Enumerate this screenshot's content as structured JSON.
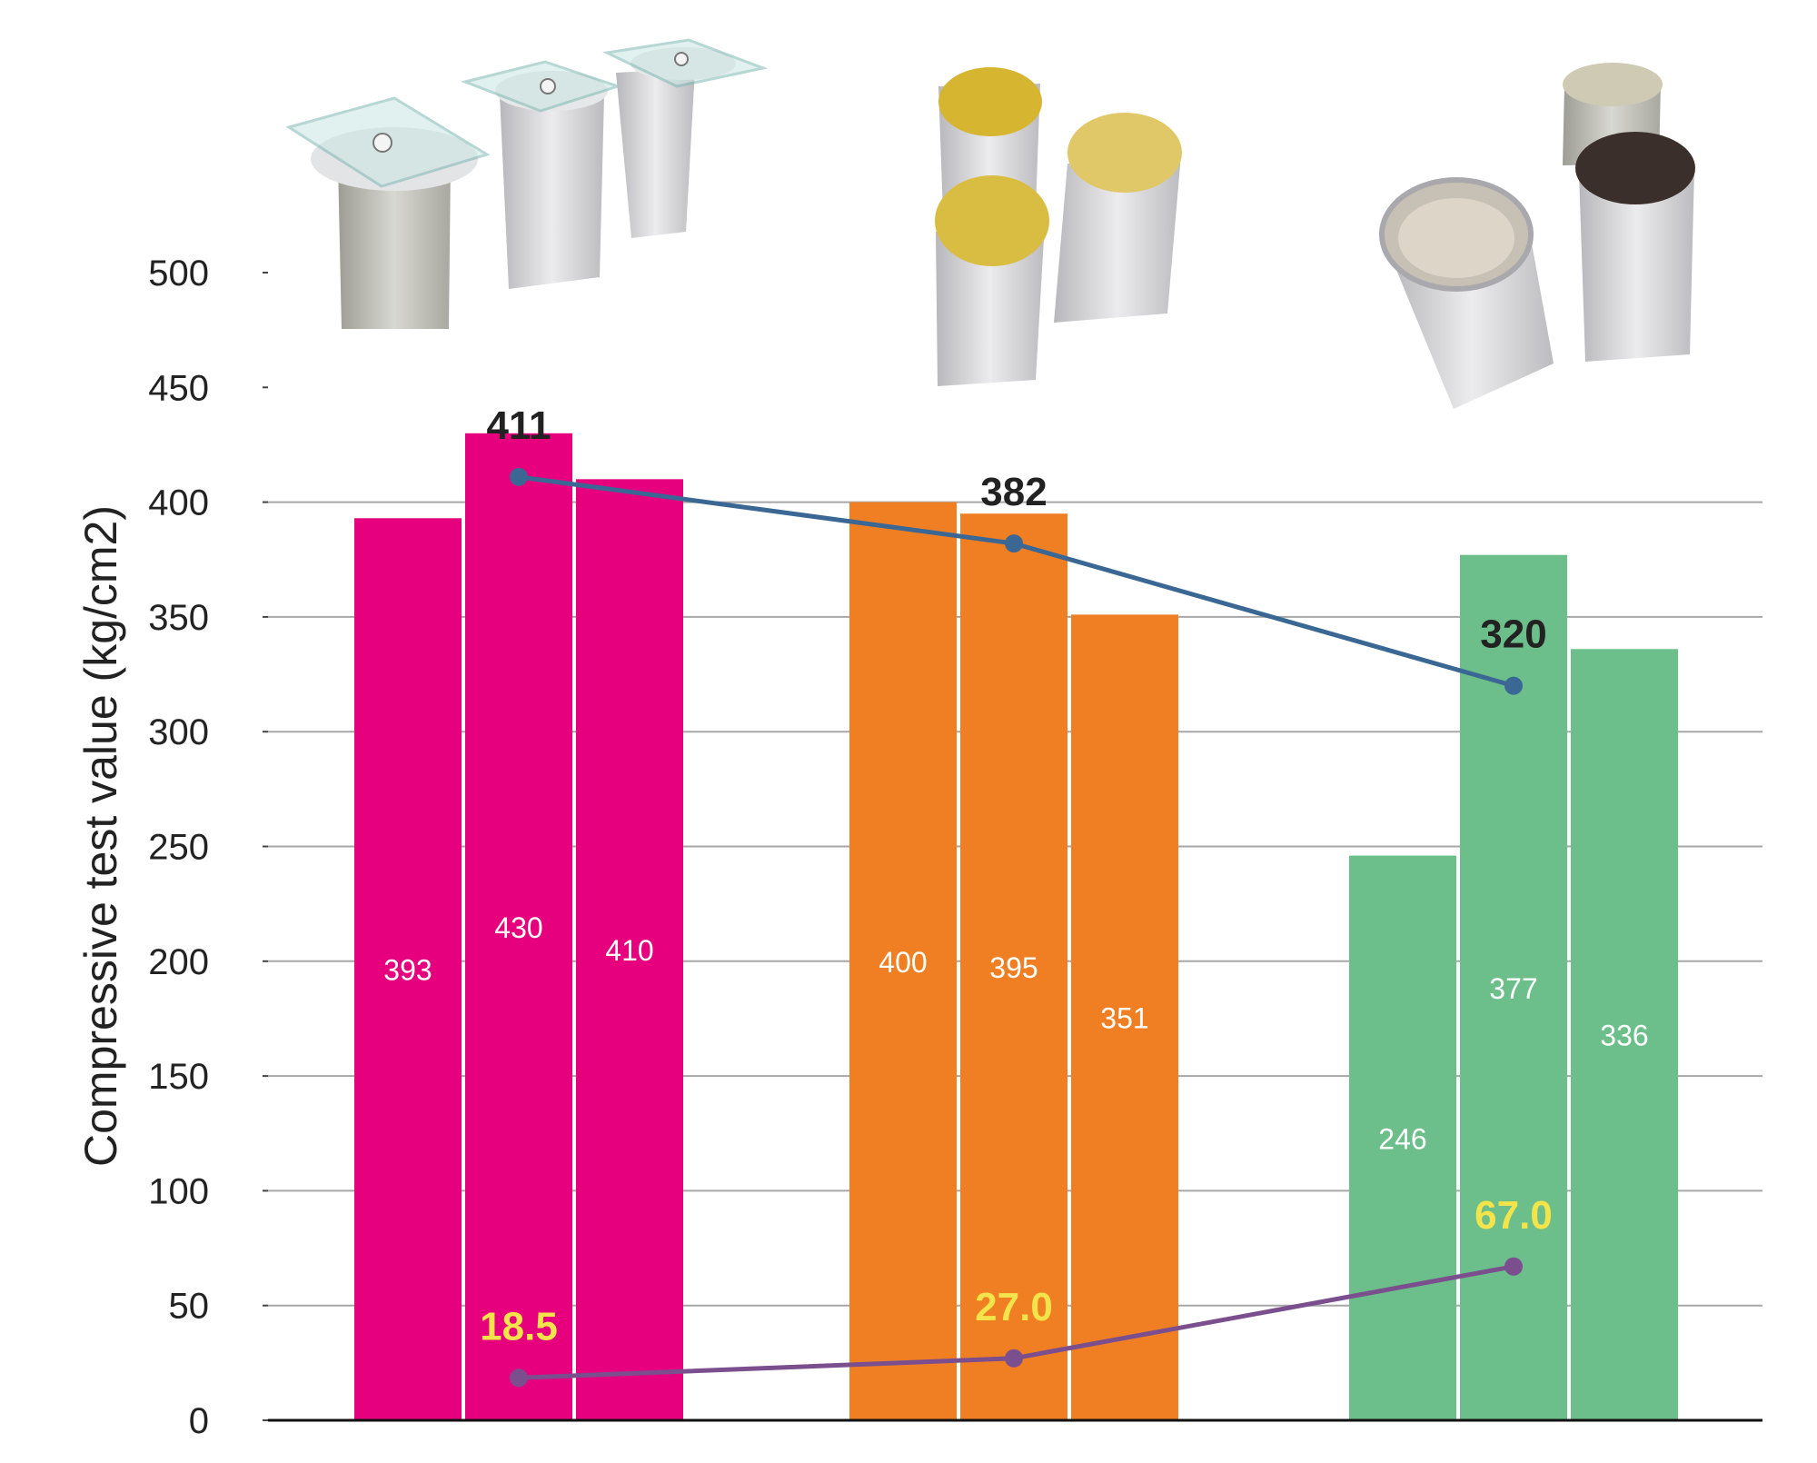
{
  "chart_data": {
    "type": "bar",
    "ylabel": "Compressive test value (kg/cm2)",
    "ylim": [
      0,
      500
    ],
    "y_ticks": [
      "0",
      "50",
      "100",
      "150",
      "200",
      "250",
      "300",
      "350",
      "400",
      "450",
      "500"
    ],
    "grid": true,
    "groups": [
      {
        "color": "#e6007e",
        "values": [
          393,
          430,
          410
        ],
        "labels": [
          "393",
          "430",
          "410"
        ]
      },
      {
        "color": "#ef7f22",
        "values": [
          400,
          395,
          351
        ],
        "labels": [
          "400",
          "395",
          "351"
        ]
      },
      {
        "color": "#6cbf8a",
        "values": [
          246,
          377,
          336
        ],
        "labels": [
          "246",
          "377",
          "336"
        ]
      }
    ],
    "lines": [
      {
        "color": "#3a6794",
        "label_color": "#222222",
        "values": [
          411,
          382,
          320
        ],
        "labels": [
          "411",
          "382",
          "320"
        ]
      },
      {
        "color": "#7b4f8e",
        "label_color": "#f2e44a",
        "values": [
          18.5,
          27.0,
          67.0
        ],
        "labels": [
          "18.5",
          "27.0",
          "67.0"
        ]
      }
    ]
  },
  "images": [
    {
      "name": "glass-capped-cylinders-photo",
      "icon": "concrete-cylinder-icon"
    },
    {
      "name": "sulfur-capped-cylinders-photo",
      "icon": "concrete-cylinder-icon"
    },
    {
      "name": "rubber-capped-cylinders-photo",
      "icon": "concrete-cylinder-icon"
    }
  ]
}
